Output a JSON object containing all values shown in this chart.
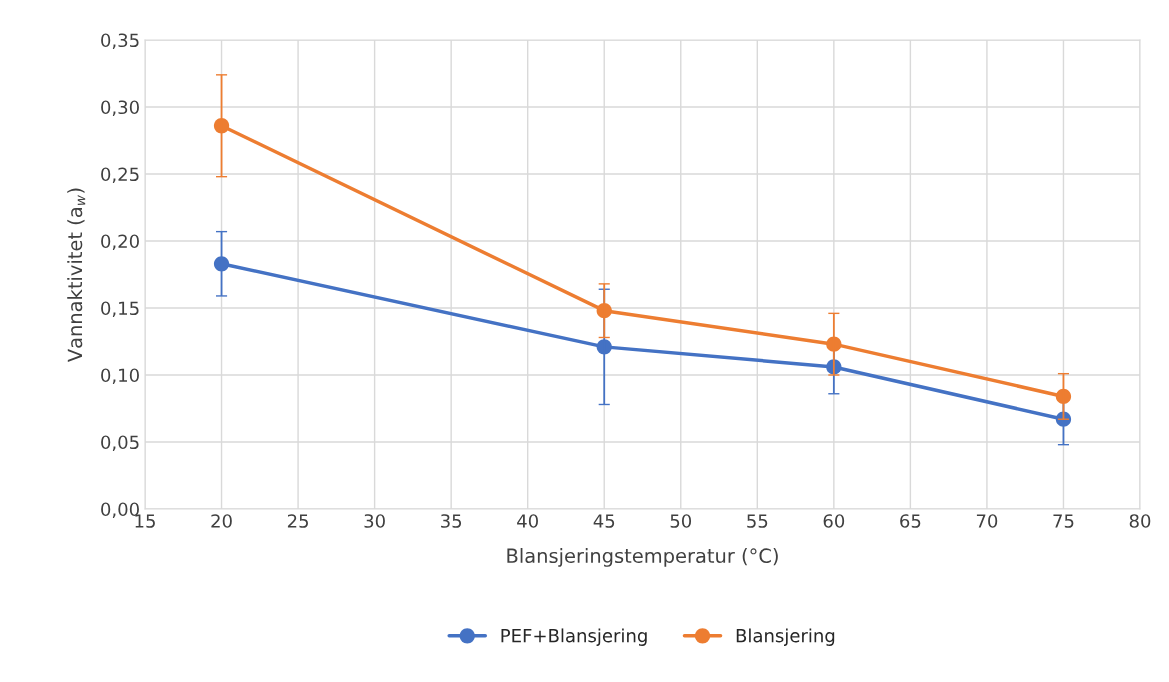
{
  "chart_data": {
    "type": "line",
    "xlabel": "Blansjeringstemperatur (°C)",
    "ylabel": "Vannaktivitet (a$_{w}$)",
    "x": [
      20,
      45,
      60,
      75
    ],
    "series": [
      {
        "name": "PEF+Blansjering",
        "color": "#4472c4",
        "values": [
          0.183,
          0.121,
          0.106,
          0.067
        ],
        "errors": [
          0.024,
          0.043,
          0.02,
          0.019
        ]
      },
      {
        "name": "Blansjering",
        "color": "#ed7d31",
        "values": [
          0.286,
          0.148,
          0.123,
          0.084
        ],
        "errors": [
          0.038,
          0.02,
          0.023,
          0.017
        ]
      }
    ],
    "xlim": [
      15,
      80
    ],
    "xticks": [
      15,
      20,
      25,
      30,
      35,
      40,
      45,
      50,
      55,
      60,
      65,
      70,
      75,
      80
    ],
    "ylim": [
      0,
      0.35
    ],
    "yticks": [
      {
        "value": 0,
        "label": "0,00"
      },
      {
        "value": 0.05,
        "label": "0,05"
      },
      {
        "value": 0.1,
        "label": "0,10"
      },
      {
        "value": 0.15,
        "label": "0,15"
      },
      {
        "value": 0.2,
        "label": "0,20"
      },
      {
        "value": 0.25,
        "label": "0,25"
      },
      {
        "value": 0.3,
        "label": "0,30"
      },
      {
        "value": 0.35,
        "label": "0,35"
      }
    ],
    "grid": true,
    "legend": "bottom",
    "marker": "circle",
    "line_style": "solid"
  }
}
